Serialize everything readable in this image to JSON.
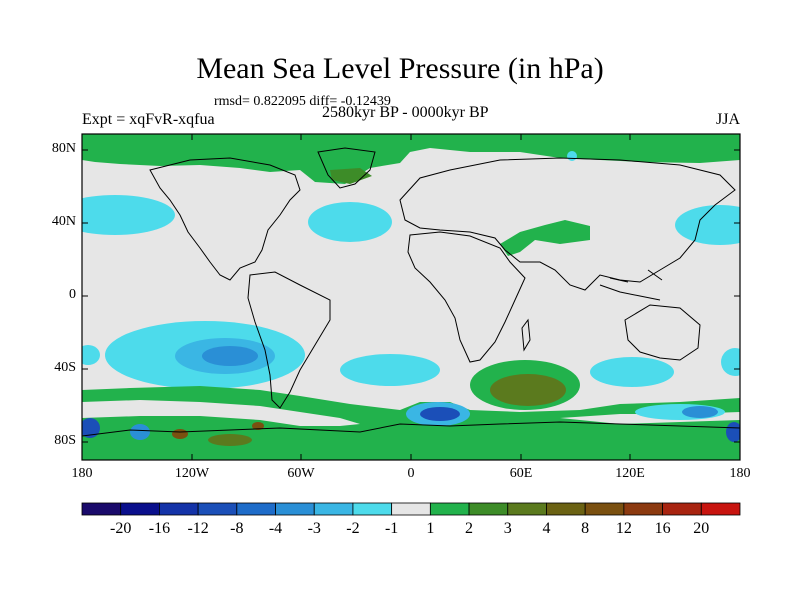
{
  "title": "Mean Sea Level Pressure (in hPa)",
  "stats": "rmsd= 0.822095 diff= -0.12439",
  "experiment": "Expt = xqFvR-xqfua",
  "period": "2580kyr BP - 0000kyr BP",
  "season": "JJA",
  "lat_ticks": [
    "80N",
    "40N",
    "0",
    "40S",
    "80S"
  ],
  "lon_ticks": [
    "180",
    "120W",
    "60W",
    "0",
    "60E",
    "120E",
    "180"
  ],
  "colorbar": {
    "colors": [
      "#1a0a6b",
      "#0a0f8c",
      "#1433a8",
      "#1b4fb8",
      "#1e6cc9",
      "#2a8fd6",
      "#3ab6e4",
      "#4ddbeb",
      "#e6e6e6",
      "#22b24c",
      "#3d8c28",
      "#5b7a1e",
      "#6b6213",
      "#7a5010",
      "#8c3a10",
      "#a82410",
      "#c8140f"
    ],
    "labels": [
      "-20",
      "-16",
      "-12",
      "-8",
      "-4",
      "-3",
      "-2",
      "-1",
      "1",
      "2",
      "3",
      "4",
      "8",
      "12",
      "16",
      "20"
    ]
  },
  "colors": {
    "background_field": "#e6e6e6",
    "positive_1": "#22b24c",
    "positive_2": "#3d8c28",
    "positive_3": "#5b7a1e",
    "negative_1": "#4ddbeb",
    "negative_2": "#3ab6e4",
    "negative_3": "#2a8fd6",
    "negative_4": "#1b4fb8",
    "negative_5": "#1a0a6b"
  }
}
